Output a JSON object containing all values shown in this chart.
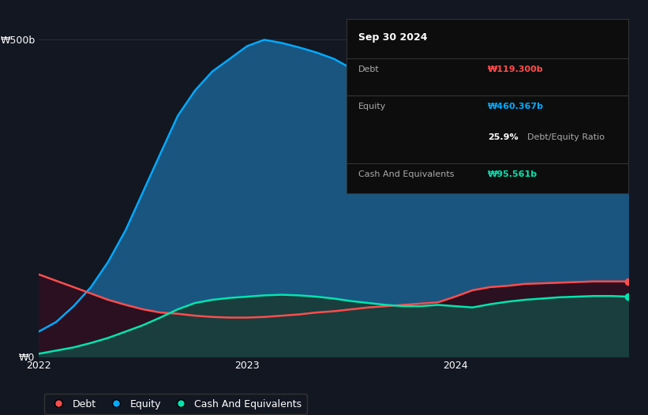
{
  "background_color": "#131722",
  "plot_bg_color": "#131722",
  "y_label_500": "₩500b",
  "y_label_0": "₩0",
  "x_ticks": [
    "2022",
    "2023",
    "2024"
  ],
  "tooltip": {
    "title": "Sep 30 2024",
    "debt_label": "Debt",
    "debt_value": "₩119.300b",
    "equity_label": "Equity",
    "equity_value": "₩460.367b",
    "ratio": "25.9%",
    "ratio_label": "Debt/Equity Ratio",
    "cash_label": "Cash And Equivalents",
    "cash_value": "₩95.561b"
  },
  "legend": [
    {
      "label": "Debt",
      "color": "#ff4d4d"
    },
    {
      "label": "Equity",
      "color": "#00aaff"
    },
    {
      "label": "Cash And Equivalents",
      "color": "#00e5b0"
    }
  ],
  "equity_fill_color": "#1a5580",
  "equity_line_color": "#00aaff",
  "debt_fill_color": "#2a1020",
  "debt_line_color": "#ff4d4d",
  "cash_fill_color": "#1a3d3d",
  "cash_line_color": "#00e5b0",
  "grid_color": "#2a2e39",
  "x_values": [
    0,
    0.083,
    0.167,
    0.25,
    0.333,
    0.417,
    0.5,
    0.583,
    0.667,
    0.75,
    0.833,
    0.917,
    1.0,
    1.083,
    1.167,
    1.25,
    1.333,
    1.417,
    1.5,
    1.583,
    1.667,
    1.75,
    1.833,
    1.917,
    2.0,
    2.083,
    2.167,
    2.25,
    2.333,
    2.417,
    2.5,
    2.583,
    2.667,
    2.75,
    2.833
  ],
  "equity_values": [
    40,
    55,
    80,
    110,
    150,
    200,
    260,
    320,
    380,
    420,
    450,
    470,
    490,
    500,
    495,
    488,
    480,
    470,
    455,
    440,
    430,
    435,
    445,
    450,
    455,
    460,
    458,
    455,
    457,
    458,
    460,
    461,
    462,
    461,
    460
  ],
  "debt_values": [
    130,
    120,
    110,
    100,
    90,
    82,
    75,
    70,
    68,
    65,
    63,
    62,
    62,
    63,
    65,
    67,
    70,
    72,
    75,
    78,
    80,
    82,
    84,
    86,
    95,
    105,
    110,
    112,
    115,
    116,
    117,
    118,
    119,
    119,
    119
  ],
  "cash_values": [
    5,
    10,
    15,
    22,
    30,
    40,
    50,
    62,
    75,
    85,
    90,
    93,
    95,
    97,
    98,
    97,
    95,
    92,
    88,
    85,
    82,
    80,
    80,
    82,
    80,
    78,
    83,
    87,
    90,
    92,
    94,
    95,
    96,
    96,
    95
  ],
  "ylim": [
    0,
    530
  ],
  "xlim": [
    0,
    2.833
  ],
  "x_tick_positions": [
    0,
    1.0,
    2.0
  ],
  "marker_x": 2.833,
  "debt_marker_y": 119,
  "equity_marker_y": 460,
  "cash_marker_y": 95
}
